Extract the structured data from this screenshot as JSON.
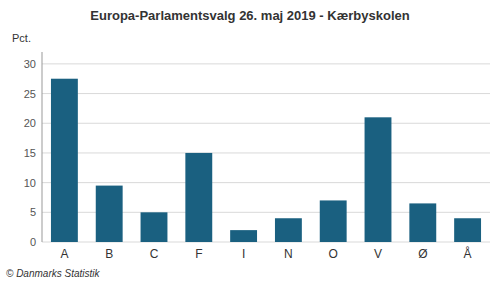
{
  "chart_data": {
    "type": "bar",
    "title": "Europa-Parlamentsvalg 26. maj 2019 - Kærbyskolen",
    "categories": [
      "A",
      "B",
      "C",
      "F",
      "I",
      "N",
      "O",
      "V",
      "Ø",
      "Å"
    ],
    "values": [
      27.5,
      9.5,
      5.0,
      15.0,
      2.0,
      4.0,
      7.0,
      21.0,
      6.5,
      4.0
    ],
    "color": "#1a6080",
    "ylabel": "Pct.",
    "footer": "© Danmarks Statistik",
    "ylim": [
      0,
      32
    ],
    "yticks": [
      0,
      5,
      10,
      15,
      20,
      25,
      30
    ],
    "grid": true
  }
}
